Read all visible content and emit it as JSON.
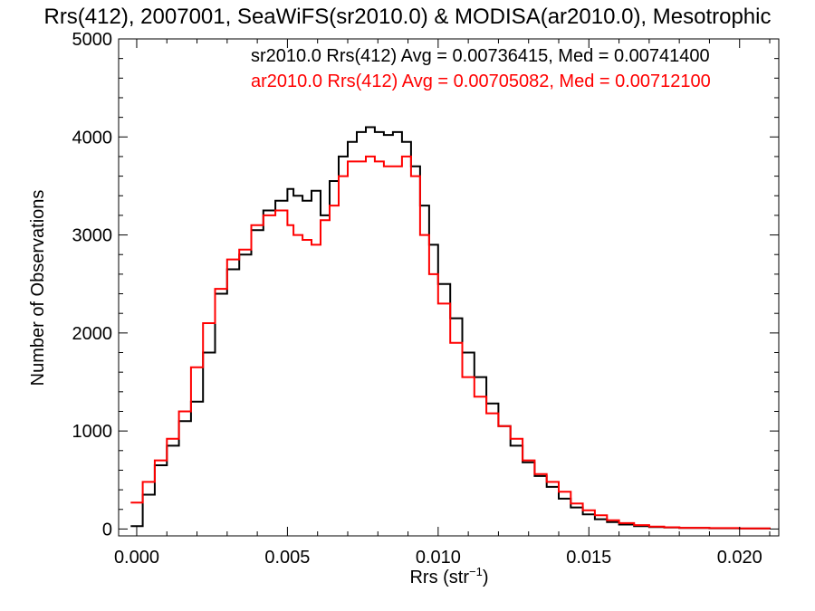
{
  "chart_data": {
    "type": "line",
    "title": "Rrs(412), 2007001, SeaWiFS(sr2010.0) & MODISA(ar2010.0), Mesotrophic",
    "xlabel": "Rrs (str",
    "xlabel_sup": "−1",
    "xlabel_end": ")",
    "ylabel": "Number of Observations",
    "xlim": [
      -0.0006,
      0.0213
    ],
    "ylim": [
      -70,
      5000
    ],
    "xticks": [
      "0.000",
      "0.005",
      "0.010",
      "0.015",
      "0.020"
    ],
    "xtick_values": [
      0.0,
      0.005,
      0.01,
      0.015,
      0.02
    ],
    "yticks": [
      "0",
      "1000",
      "2000",
      "3000",
      "4000",
      "5000"
    ],
    "ytick_values": [
      0,
      1000,
      2000,
      3000,
      4000,
      5000
    ],
    "grid": false,
    "legend_position": "top-right",
    "legend": [
      "sr2010.0 Rrs(412) Avg = 0.00736415, Med = 0.00741400",
      "ar2010.0 Rrs(412) Avg = 0.00705082, Med = 0.00712100"
    ],
    "series": [
      {
        "name": "sr2010.0 Rrs(412)",
        "color": "#000000",
        "x": [
          -0.0002,
          0.0002,
          0.0006,
          0.001,
          0.0014,
          0.0018,
          0.0022,
          0.0026,
          0.003,
          0.0034,
          0.0038,
          0.0042,
          0.0046,
          0.005,
          0.0052,
          0.0055,
          0.0058,
          0.0061,
          0.0064,
          0.0067,
          0.007,
          0.0073,
          0.0076,
          0.0079,
          0.0082,
          0.0085,
          0.0088,
          0.0091,
          0.0094,
          0.0097,
          0.01,
          0.0104,
          0.0108,
          0.0112,
          0.0116,
          0.012,
          0.0124,
          0.0128,
          0.0132,
          0.0136,
          0.014,
          0.0144,
          0.0148,
          0.0152,
          0.0156,
          0.016,
          0.0165,
          0.017,
          0.0175,
          0.018,
          0.019,
          0.02,
          0.021
        ],
        "y": [
          30,
          350,
          650,
          850,
          1100,
          1300,
          1800,
          2400,
          2650,
          2800,
          3050,
          3250,
          3350,
          3470,
          3400,
          3350,
          3450,
          3200,
          3550,
          3800,
          3950,
          4050,
          4100,
          4050,
          4020,
          4050,
          3950,
          3700,
          3300,
          2900,
          2500,
          2150,
          1800,
          1550,
          1280,
          1050,
          850,
          680,
          540,
          430,
          310,
          220,
          150,
          100,
          70,
          45,
          30,
          20,
          15,
          10,
          8,
          5,
          3
        ]
      },
      {
        "name": "ar2010.0 Rrs(412)",
        "color": "#ff0000",
        "x": [
          -0.0002,
          0.0002,
          0.0006,
          0.001,
          0.0014,
          0.0018,
          0.0022,
          0.0026,
          0.003,
          0.0034,
          0.0038,
          0.0042,
          0.0046,
          0.005,
          0.0052,
          0.0055,
          0.0058,
          0.0061,
          0.0064,
          0.0067,
          0.007,
          0.0073,
          0.0076,
          0.0079,
          0.0082,
          0.0085,
          0.0088,
          0.0091,
          0.0094,
          0.0097,
          0.01,
          0.0104,
          0.0108,
          0.0112,
          0.0116,
          0.012,
          0.0124,
          0.0128,
          0.0132,
          0.0136,
          0.014,
          0.0144,
          0.0148,
          0.0152,
          0.0156,
          0.016,
          0.0165,
          0.017,
          0.0175,
          0.018,
          0.019,
          0.02,
          0.021
        ],
        "y": [
          270,
          480,
          700,
          920,
          1200,
          1650,
          2100,
          2450,
          2750,
          2850,
          3100,
          3200,
          3250,
          3100,
          3000,
          2950,
          2900,
          3150,
          3300,
          3600,
          3750,
          3750,
          3800,
          3750,
          3700,
          3700,
          3800,
          3600,
          3000,
          2600,
          2300,
          1900,
          1550,
          1350,
          1180,
          1050,
          920,
          700,
          560,
          480,
          380,
          260,
          190,
          140,
          90,
          60,
          40,
          25,
          18,
          12,
          9,
          6,
          3
        ]
      }
    ]
  }
}
